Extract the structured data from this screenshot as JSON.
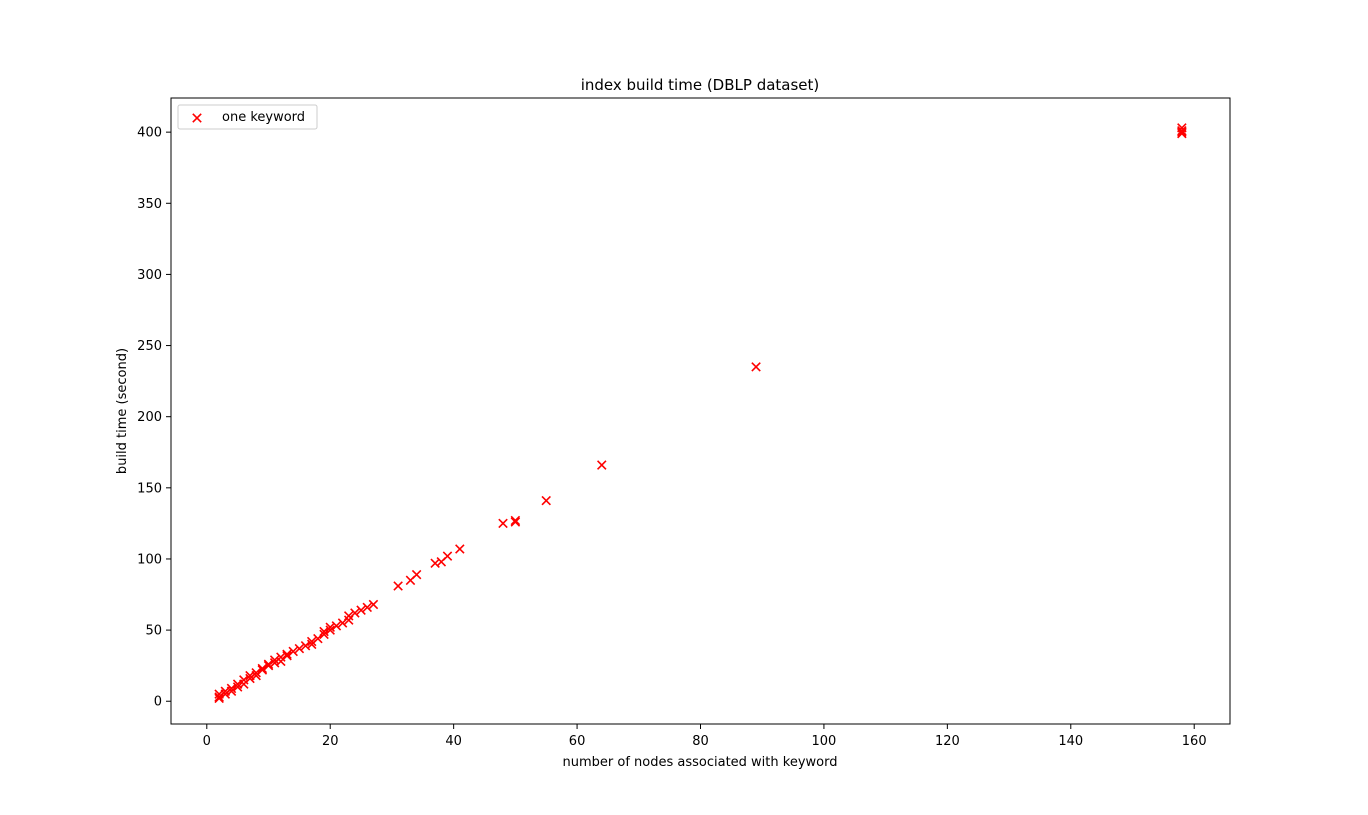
{
  "chart_data": {
    "type": "scatter",
    "title": "index build time (DBLP dataset)",
    "xlabel": "number of nodes associated with keyword",
    "ylabel": "build time (second)",
    "xlim": [
      -5.8,
      165.8
    ],
    "ylim": [
      -16,
      424
    ],
    "xticks": [
      0,
      20,
      40,
      60,
      80,
      100,
      120,
      140,
      160
    ],
    "yticks": [
      0,
      50,
      100,
      150,
      200,
      250,
      300,
      350,
      400
    ],
    "grid": false,
    "legend": {
      "placement": "top-left",
      "entries": [
        "one keyword"
      ]
    },
    "series": [
      {
        "name": "one keyword",
        "marker": "x",
        "color": "#ff0000",
        "x": [
          2,
          2,
          2,
          3,
          3,
          4,
          4,
          5,
          5,
          6,
          6,
          7,
          7,
          8,
          8,
          9,
          9,
          10,
          10,
          11,
          11,
          12,
          12,
          13,
          13,
          14,
          15,
          16,
          17,
          17,
          18,
          19,
          19,
          20,
          20,
          21,
          22,
          23,
          23,
          24,
          25,
          26,
          27,
          31,
          33,
          34,
          37,
          38,
          39,
          41,
          48,
          50,
          50,
          55,
          64,
          89,
          158,
          158,
          158,
          158
        ],
        "y": [
          2,
          3,
          5,
          5,
          7,
          7,
          9,
          10,
          12,
          12,
          15,
          16,
          18,
          18,
          20,
          22,
          23,
          25,
          26,
          27,
          29,
          28,
          31,
          32,
          33,
          35,
          37,
          39,
          40,
          42,
          44,
          47,
          49,
          50,
          52,
          53,
          55,
          57,
          60,
          62,
          64,
          66,
          68,
          81,
          85,
          89,
          97,
          98,
          102,
          107,
          125,
          126,
          127,
          141,
          166,
          235,
          399,
          400,
          401,
          403
        ]
      }
    ]
  }
}
